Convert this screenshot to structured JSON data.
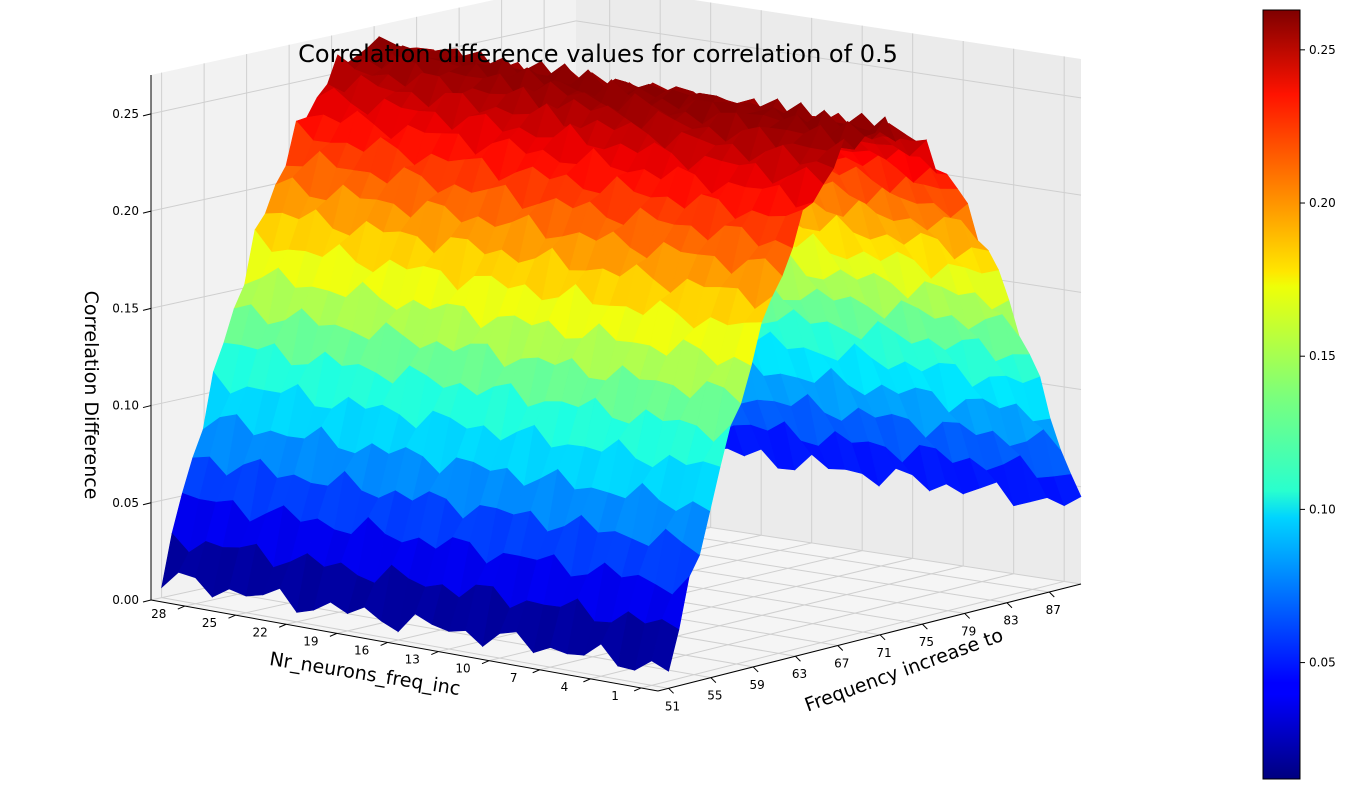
{
  "chart_data": {
    "type": "surface3d",
    "title": "Correlation difference values for correlation of 0.5",
    "xlabel": "Frequency increase to",
    "ylabel": "Nr_neurons_freq_inc",
    "zlabel": "Correlation Difference",
    "x_ticks": [
      51,
      55,
      59,
      63,
      67,
      71,
      75,
      79,
      83,
      87
    ],
    "y_ticks": [
      1,
      4,
      7,
      10,
      13,
      16,
      19,
      22,
      25,
      28
    ],
    "z_ticks": [
      "0.00",
      "0.05",
      "0.10",
      "0.15",
      "0.20",
      "0.25"
    ],
    "x_range": [
      50,
      90
    ],
    "y_range": [
      0,
      30
    ],
    "zlim": [
      0,
      0.27
    ],
    "grid": true,
    "colormap": "jet",
    "colorbar_ticks": [
      "0.05",
      "0.10",
      "0.15",
      "0.20",
      "0.25"
    ],
    "colorbar_range": [
      0.012,
      0.263
    ],
    "surface_model": {
      "description": "Correlation difference rises from ~0.01 at x=51 to a peak of ~0.26 near x=69–72, then falls back to ~0.04 at x=90; nearly constant along Nr_neurons_freq_inc",
      "x_start": 51,
      "x_peak": 70.5,
      "x_end": 90,
      "z_start": 0.01,
      "z_peak": 0.26,
      "z_end": 0.04
    }
  }
}
